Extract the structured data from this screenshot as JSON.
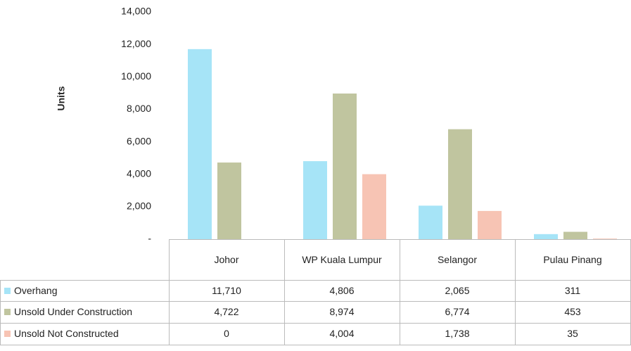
{
  "chart_data": {
    "type": "bar",
    "y_axis_label": "Units",
    "categories": [
      "Johor",
      "WP Kuala Lumpur",
      "Selangor",
      "Pulau Pinang"
    ],
    "series": [
      {
        "name": "Overhang",
        "color": "#a6e4f7",
        "values": [
          11710,
          4806,
          2065,
          311
        ],
        "value_labels": [
          "11,710",
          "4,806",
          "2,065",
          "311"
        ]
      },
      {
        "name": "Unsold Under Construction",
        "color": "#c0c59f",
        "values": [
          4722,
          8974,
          6774,
          453
        ],
        "value_labels": [
          "4,722",
          "8,974",
          "6,774",
          "453"
        ]
      },
      {
        "name": "Unsold Not Constructed",
        "color": "#f7c4b4",
        "values": [
          0,
          4004,
          1738,
          35
        ],
        "value_labels": [
          "0",
          "4,004",
          "1,738",
          "35"
        ]
      }
    ],
    "ylim": [
      0,
      14000
    ],
    "yticks": [
      {
        "value": 0,
        "label": "-"
      },
      {
        "value": 2000,
        "label": "2,000"
      },
      {
        "value": 4000,
        "label": "4,000"
      },
      {
        "value": 6000,
        "label": "6,000"
      },
      {
        "value": 8000,
        "label": "8,000"
      },
      {
        "value": 10000,
        "label": "10,000"
      },
      {
        "value": 12000,
        "label": "12,000"
      },
      {
        "value": 14000,
        "label": "14,000"
      }
    ],
    "grid": false
  }
}
